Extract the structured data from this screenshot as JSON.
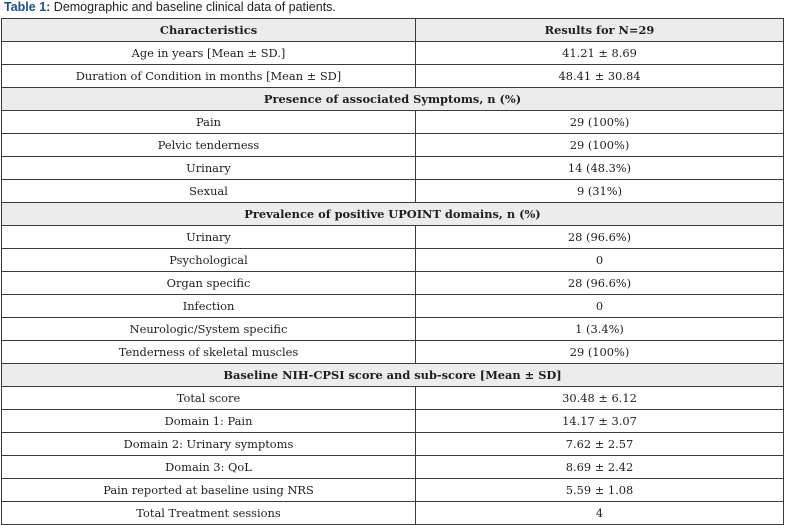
{
  "caption": {
    "label": "Table 1:",
    "text": " Demographic and baseline clinical data of patients."
  },
  "table": {
    "headers": [
      "Characteristics",
      "Results for N=29"
    ],
    "rows": [
      {
        "type": "data",
        "label": "Age in years [Mean ± SD.]",
        "value": "41.21 ± 8.69"
      },
      {
        "type": "data",
        "label": "Duration of Condition in months [Mean ± SD]",
        "value": "48.41 ± 30.84"
      },
      {
        "type": "section",
        "label": "Presence of associated Symptoms, n (%)"
      },
      {
        "type": "data",
        "label": "Pain",
        "value": "29 (100%)"
      },
      {
        "type": "data",
        "label": "Pelvic tenderness",
        "value": "29 (100%)"
      },
      {
        "type": "data",
        "label": "Urinary",
        "value": "14 (48.3%)"
      },
      {
        "type": "data",
        "label": "Sexual",
        "value": "9 (31%)"
      },
      {
        "type": "section",
        "label": "Prevalence of positive UPOINT domains, n (%)"
      },
      {
        "type": "data",
        "label": "Urinary",
        "value": "28 (96.6%)"
      },
      {
        "type": "data",
        "label": "Psychological",
        "value": "0"
      },
      {
        "type": "data",
        "label": "Organ specific",
        "value": "28 (96.6%)"
      },
      {
        "type": "data",
        "label": "Infection",
        "value": "0"
      },
      {
        "type": "data",
        "label": "Neurologic/System specific",
        "value": "1 (3.4%)"
      },
      {
        "type": "data",
        "label": "Tenderness of skeletal muscles",
        "value": "29 (100%)"
      },
      {
        "type": "section",
        "label": "Baseline NIH-CPSI score and sub-score [Mean ± SD]"
      },
      {
        "type": "data",
        "label": "Total score",
        "value": "30.48 ± 6.12"
      },
      {
        "type": "data",
        "label": "Domain 1: Pain",
        "value": "14.17 ± 3.07"
      },
      {
        "type": "data",
        "label": "Domain 2: Urinary symptoms",
        "value": "7.62 ± 2.57"
      },
      {
        "type": "data",
        "label": "Domain 3: QoL",
        "value": "8.69 ± 2.42"
      },
      {
        "type": "data",
        "label": "Pain reported at baseline using NRS",
        "value": "5.59 ± 1.08"
      },
      {
        "type": "data",
        "label": "Total Treatment sessions",
        "value": "4"
      }
    ]
  }
}
